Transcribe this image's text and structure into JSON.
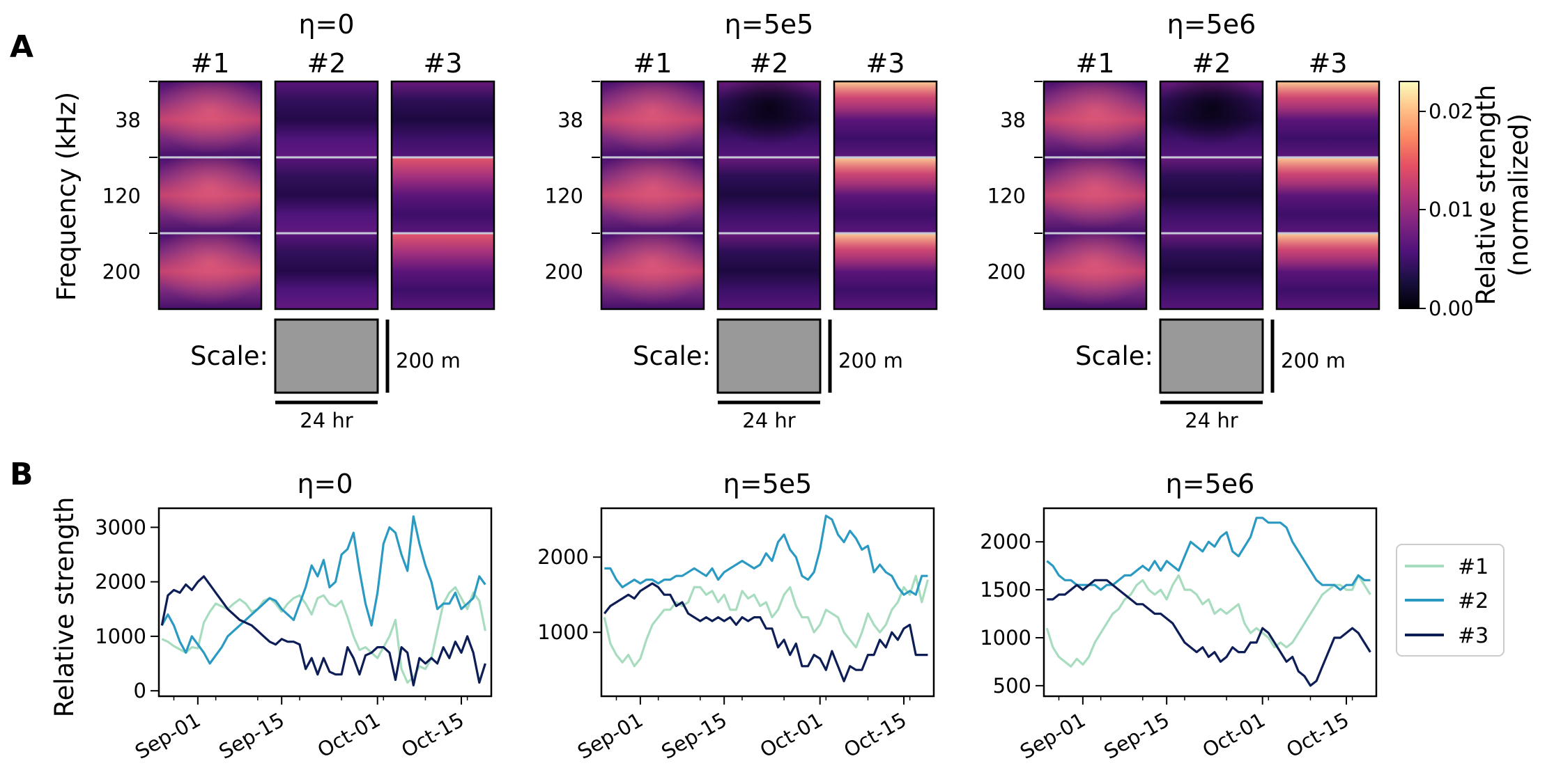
{
  "panel_labels": {
    "a": "A",
    "b": "B"
  },
  "colors": {
    "s1": "#a8dcbf",
    "s2": "#2b9ac2",
    "s3": "#0d1d55",
    "scale_box": "#999999"
  },
  "chart_data": [
    {
      "type": "heatmap",
      "panel": "A",
      "ylabel": "Frequency (kHz)",
      "frequency_ticks": [
        "38",
        "120",
        "200"
      ],
      "colorbar": {
        "label_line1": "Relative strength",
        "label_line2": "(normalized)",
        "ticks": [
          "0.00",
          "0.01",
          "0.02"
        ],
        "range": [
          0,
          0.023
        ],
        "colormap": "magma"
      },
      "scale": {
        "label": "Scale:",
        "time": "24 hr",
        "depth": "200 m"
      },
      "groups": [
        {
          "title": "η=0",
          "eta": "0",
          "columns": [
            "#1",
            "#2",
            "#3"
          ]
        },
        {
          "title": "η=5e5",
          "eta": "5e5",
          "columns": [
            "#1",
            "#2",
            "#3"
          ]
        },
        {
          "title": "η=5e6",
          "eta": "5e6",
          "columns": [
            "#1",
            "#2",
            "#3"
          ]
        }
      ]
    },
    {
      "type": "line",
      "panel": "B",
      "title": "η=0",
      "ylabel": "Relative strength",
      "x_ticks": [
        "Sep-01",
        "Sep-15",
        "Oct-01",
        "Oct-15"
      ],
      "x_tick_days": [
        6,
        20,
        36,
        50
      ],
      "ylim": [
        -100,
        3350
      ],
      "y_ticks": [
        0,
        1000,
        2000,
        3000
      ],
      "series": [
        {
          "name": "#1",
          "values": [
            950,
            900,
            820,
            760,
            700,
            800,
            780,
            1250,
            1450,
            1600,
            1550,
            1500,
            1600,
            1680,
            1600,
            1450,
            1500,
            1650,
            1700,
            1600,
            1450,
            1600,
            1700,
            1750,
            1600,
            1400,
            1700,
            1750,
            1600,
            1550,
            1650,
            1350,
            1000,
            750,
            800,
            700,
            600,
            800,
            1000,
            1300,
            400,
            150,
            250,
            450,
            400,
            600,
            1100,
            1600,
            1800,
            1900,
            1700,
            1500,
            1800,
            1650,
            1100
          ]
        },
        {
          "name": "#2",
          "values": [
            1200,
            1400,
            1200,
            900,
            700,
            1000,
            850,
            700,
            500,
            650,
            800,
            1000,
            1100,
            1200,
            1300,
            1400,
            1500,
            1600,
            1700,
            1650,
            1500,
            1400,
            1300,
            1600,
            1900,
            2300,
            2100,
            2400,
            1900,
            2000,
            2500,
            2600,
            2900,
            2200,
            1600,
            1200,
            1800,
            2700,
            3000,
            2900,
            2500,
            2200,
            3200,
            2700,
            2300,
            2000,
            1500,
            1600,
            1600,
            1800,
            1500,
            1600,
            1700,
            2100,
            1950
          ]
        },
        {
          "name": "#3",
          "values": [
            1200,
            1750,
            1850,
            1800,
            1950,
            1850,
            2000,
            2100,
            1950,
            1800,
            1650,
            1500,
            1400,
            1300,
            1250,
            1200,
            1100,
            1000,
            900,
            850,
            950,
            900,
            900,
            850,
            400,
            600,
            300,
            600,
            350,
            300,
            300,
            800,
            600,
            300,
            650,
            700,
            800,
            800,
            700,
            200,
            800,
            700,
            100,
            600,
            500,
            600,
            500,
            800,
            600,
            900,
            700,
            1000,
            700,
            150,
            500
          ]
        }
      ]
    },
    {
      "type": "line",
      "panel": "B",
      "title": "η=5e5",
      "x_ticks": [
        "Sep-01",
        "Sep-15",
        "Oct-01",
        "Oct-15"
      ],
      "x_tick_days": [
        6,
        20,
        36,
        50
      ],
      "ylim": [
        150,
        2650
      ],
      "y_ticks": [
        1000,
        2000
      ],
      "series": [
        {
          "name": "#1",
          "values": [
            1200,
            850,
            700,
            600,
            700,
            550,
            650,
            900,
            1100,
            1200,
            1300,
            1300,
            1400,
            1350,
            1400,
            1600,
            1600,
            1500,
            1550,
            1400,
            1500,
            1300,
            1300,
            1550,
            1450,
            1500,
            1350,
            1400,
            1200,
            1300,
            1500,
            1600,
            1350,
            1200,
            1200,
            1000,
            1100,
            1300,
            1250,
            1200,
            1000,
            900,
            800,
            1000,
            1250,
            1100,
            1000,
            1100,
            1300,
            1400,
            1600,
            1500,
            1750,
            1400,
            1700
          ]
        },
        {
          "name": "#2",
          "values": [
            1850,
            1850,
            1700,
            1600,
            1650,
            1700,
            1650,
            1700,
            1700,
            1650,
            1700,
            1700,
            1750,
            1750,
            1800,
            1850,
            1800,
            1750,
            1850,
            1700,
            1800,
            1850,
            1900,
            1950,
            1900,
            1850,
            1900,
            2050,
            1950,
            2200,
            2300,
            2100,
            2000,
            1750,
            1700,
            1800,
            2100,
            2550,
            2500,
            2300,
            2200,
            2350,
            2250,
            2100,
            2150,
            1800,
            1900,
            1800,
            1750,
            1600,
            1500,
            1550,
            1500,
            1750,
            1750
          ]
        },
        {
          "name": "#3",
          "values": [
            1250,
            1350,
            1400,
            1450,
            1500,
            1450,
            1550,
            1600,
            1650,
            1600,
            1500,
            1500,
            1350,
            1400,
            1250,
            1200,
            1150,
            1200,
            1150,
            1200,
            1150,
            1200,
            1100,
            1200,
            1150,
            1200,
            1200,
            1050,
            1050,
            800,
            900,
            700,
            850,
            550,
            550,
            700,
            650,
            500,
            750,
            550,
            350,
            550,
            500,
            500,
            700,
            700,
            900,
            800,
            1000,
            900,
            1050,
            1100,
            700,
            700,
            700
          ]
        }
      ]
    },
    {
      "type": "line",
      "panel": "B",
      "title": "η=5e6",
      "x_ticks": [
        "Sep-01",
        "Sep-15",
        "Oct-01",
        "Oct-15"
      ],
      "x_tick_days": [
        6,
        20,
        36,
        50
      ],
      "ylim": [
        390,
        2350
      ],
      "y_ticks": [
        500,
        1000,
        1500,
        2000
      ],
      "series": [
        {
          "name": "#1",
          "values": [
            1100,
            900,
            800,
            750,
            700,
            780,
            720,
            800,
            950,
            1050,
            1150,
            1250,
            1300,
            1400,
            1450,
            1550,
            1600,
            1500,
            1450,
            1500,
            1400,
            1550,
            1650,
            1500,
            1500,
            1450,
            1350,
            1400,
            1250,
            1300,
            1250,
            1300,
            1350,
            1150,
            1050,
            1100,
            1050,
            1000,
            900,
            950,
            900,
            950,
            1050,
            1150,
            1250,
            1350,
            1450,
            1500,
            1550,
            1550,
            1500,
            1500,
            1650,
            1550,
            1450
          ]
        },
        {
          "name": "#2",
          "values": [
            1800,
            1750,
            1650,
            1600,
            1600,
            1550,
            1550,
            1550,
            1550,
            1500,
            1550,
            1550,
            1600,
            1650,
            1650,
            1700,
            1750,
            1700,
            1800,
            1700,
            1800,
            1750,
            1700,
            1850,
            2000,
            1950,
            1900,
            2000,
            1950,
            2050,
            2100,
            1900,
            1850,
            1950,
            2050,
            2250,
            2250,
            2200,
            2200,
            2200,
            2150,
            2000,
            1900,
            1800,
            1700,
            1600,
            1550,
            1550,
            1550,
            1500,
            1550,
            1550,
            1650,
            1600,
            1600
          ]
        },
        {
          "name": "#3",
          "values": [
            1400,
            1400,
            1450,
            1450,
            1500,
            1550,
            1500,
            1550,
            1600,
            1600,
            1600,
            1550,
            1500,
            1450,
            1400,
            1350,
            1350,
            1300,
            1250,
            1250,
            1200,
            1150,
            1050,
            950,
            900,
            850,
            900,
            800,
            850,
            750,
            800,
            900,
            850,
            850,
            950,
            950,
            1100,
            1050,
            950,
            850,
            750,
            800,
            650,
            600,
            500,
            550,
            700,
            850,
            1000,
            1000,
            1050,
            1100,
            1050,
            950,
            850
          ]
        }
      ]
    }
  ]
}
